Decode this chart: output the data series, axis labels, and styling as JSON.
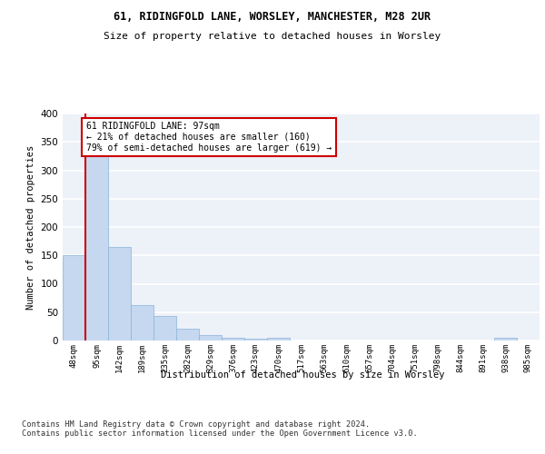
{
  "title1": "61, RIDINGFOLD LANE, WORSLEY, MANCHESTER, M28 2UR",
  "title2": "Size of property relative to detached houses in Worsley",
  "xlabel": "Distribution of detached houses by size in Worsley",
  "ylabel": "Number of detached properties",
  "bin_labels": [
    "48sqm",
    "95sqm",
    "142sqm",
    "189sqm",
    "235sqm",
    "282sqm",
    "329sqm",
    "376sqm",
    "423sqm",
    "470sqm",
    "517sqm",
    "563sqm",
    "610sqm",
    "657sqm",
    "704sqm",
    "751sqm",
    "798sqm",
    "844sqm",
    "891sqm",
    "938sqm",
    "985sqm"
  ],
  "bar_values": [
    150,
    328,
    165,
    63,
    43,
    21,
    10,
    5,
    4,
    5,
    0,
    0,
    0,
    0,
    0,
    0,
    0,
    0,
    0,
    5,
    0
  ],
  "bar_color": "#c5d8f0",
  "bar_edge_color": "#8ab4d9",
  "subject_line_color": "#cc0000",
  "annotation_text": "61 RIDINGFOLD LANE: 97sqm\n← 21% of detached houses are smaller (160)\n79% of semi-detached houses are larger (619) →",
  "annotation_box_color": "#ffffff",
  "annotation_box_edge": "#cc0000",
  "ylim": [
    0,
    400
  ],
  "yticks": [
    0,
    50,
    100,
    150,
    200,
    250,
    300,
    350,
    400
  ],
  "footer_text": "Contains HM Land Registry data © Crown copyright and database right 2024.\nContains public sector information licensed under the Open Government Licence v3.0.",
  "bg_color": "#edf1f8",
  "grid_color": "#ffffff"
}
